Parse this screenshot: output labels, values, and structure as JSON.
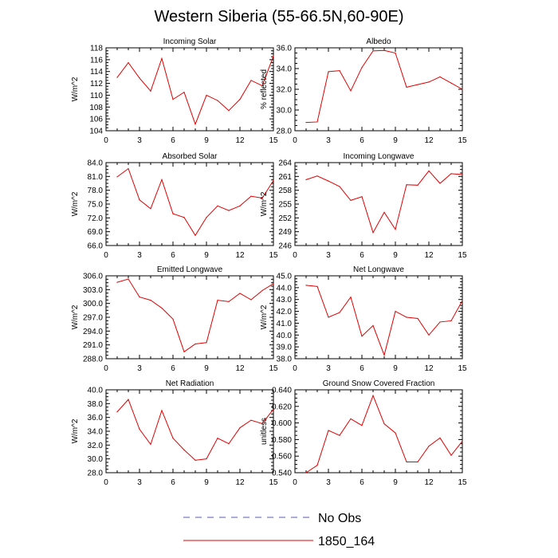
{
  "figure": {
    "title": "Western Siberia (55-66.5N,60-90E)"
  },
  "legend": [
    {
      "label": "No Obs",
      "color": "#5a5ab4",
      "dash": true
    },
    {
      "label": "1850_164",
      "color": "#e00000",
      "dash": false
    }
  ],
  "chart_data": [
    {
      "type": "line",
      "title": "Incoming Solar",
      "ylabel": "W/m^2",
      "xlim": [
        0,
        15
      ],
      "ylim": [
        104,
        118
      ],
      "xticks": [
        "0",
        "3",
        "6",
        "9",
        "12",
        "15"
      ],
      "yticks": [
        "104",
        "106",
        "108",
        "110",
        "112",
        "114",
        "116",
        "118"
      ],
      "series": [
        {
          "color": "#e00000",
          "x": [
            1,
            2,
            3,
            4,
            5,
            6,
            7,
            8,
            9,
            10,
            11,
            12,
            13,
            14,
            15
          ],
          "y": [
            113.0,
            115.5,
            112.9,
            110.7,
            116.2,
            109.3,
            110.5,
            105.1,
            110.0,
            109.1,
            107.4,
            109.3,
            112.5,
            111.6,
            116.6
          ]
        }
      ]
    },
    {
      "type": "line",
      "title": "Albedo",
      "ylabel": "% reflected",
      "xlim": [
        0,
        15
      ],
      "ylim": [
        28,
        36
      ],
      "xticks": [
        "0",
        "3",
        "6",
        "9",
        "12",
        "15"
      ],
      "yticks": [
        "28.0",
        "30.0",
        "32.0",
        "34.0",
        "36.0"
      ],
      "series": [
        {
          "color": "#e00000",
          "x": [
            1,
            2,
            3,
            4,
            5,
            6,
            7,
            8,
            9,
            10,
            11,
            12,
            13,
            14,
            15
          ],
          "y": [
            28.8,
            28.85,
            33.7,
            33.8,
            31.85,
            34.1,
            35.7,
            35.75,
            35.5,
            32.2,
            32.45,
            32.7,
            33.2,
            32.6,
            32.0
          ]
        }
      ]
    },
    {
      "type": "line",
      "title": "Absorbed Solar",
      "ylabel": "W/m^2",
      "xlim": [
        0,
        15
      ],
      "ylim": [
        66,
        84
      ],
      "xticks": [
        "0",
        "3",
        "6",
        "9",
        "12",
        "15"
      ],
      "yticks": [
        "66.0",
        "69.0",
        "72.0",
        "75.0",
        "78.0",
        "81.0",
        "84.0"
      ],
      "series": [
        {
          "color": "#e00000",
          "x": [
            1,
            2,
            3,
            4,
            5,
            6,
            7,
            8,
            9,
            10,
            11,
            12,
            13,
            14,
            15
          ],
          "y": [
            80.9,
            82.7,
            75.9,
            74.0,
            80.3,
            72.9,
            72.1,
            68.2,
            72.1,
            74.6,
            73.6,
            74.6,
            76.7,
            76.3,
            80.1
          ]
        }
      ]
    },
    {
      "type": "line",
      "title": "Incoming Longwave",
      "ylabel": "W/m^2",
      "xlim": [
        0,
        15
      ],
      "ylim": [
        246,
        264
      ],
      "xticks": [
        "0",
        "3",
        "6",
        "9",
        "12",
        "15"
      ],
      "yticks": [
        "246",
        "249",
        "252",
        "255",
        "258",
        "261",
        "264"
      ],
      "series": [
        {
          "color": "#e00000",
          "x": [
            1,
            2,
            3,
            4,
            5,
            6,
            7,
            8,
            9,
            10,
            11,
            12,
            13,
            14,
            15
          ],
          "y": [
            260.3,
            261.1,
            260.0,
            258.8,
            255.8,
            256.6,
            248.8,
            253.2,
            249.5,
            259.2,
            259.1,
            262.2,
            259.5,
            261.6,
            261.4
          ]
        }
      ]
    },
    {
      "type": "line",
      "title": "Emitted Longwave",
      "ylabel": "W/m^2",
      "xlim": [
        0,
        15
      ],
      "ylim": [
        288,
        306
      ],
      "xticks": [
        "0",
        "3",
        "6",
        "9",
        "12",
        "15"
      ],
      "yticks": [
        "288.0",
        "291.0",
        "294.0",
        "297.0",
        "300.0",
        "303.0",
        "306.0"
      ],
      "series": [
        {
          "color": "#e00000",
          "x": [
            1,
            2,
            3,
            4,
            5,
            6,
            7,
            8,
            9,
            10,
            11,
            12,
            13,
            14,
            15
          ],
          "y": [
            304.6,
            305.3,
            301.4,
            300.7,
            299.0,
            296.6,
            289.5,
            291.2,
            291.5,
            300.7,
            300.4,
            302.2,
            300.8,
            302.8,
            304.3
          ]
        }
      ]
    },
    {
      "type": "line",
      "title": "Net Longwave",
      "ylabel": "W/m^2",
      "xlim": [
        0,
        15
      ],
      "ylim": [
        38,
        45
      ],
      "xticks": [
        "0",
        "3",
        "6",
        "9",
        "12",
        "15"
      ],
      "yticks": [
        "38.0",
        "39.0",
        "40.0",
        "41.0",
        "42.0",
        "43.0",
        "44.0",
        "45.0"
      ],
      "series": [
        {
          "color": "#e00000",
          "x": [
            1,
            2,
            3,
            4,
            5,
            6,
            7,
            8,
            9,
            10,
            11,
            12,
            13,
            14,
            15
          ],
          "y": [
            44.2,
            44.1,
            41.5,
            41.9,
            43.2,
            39.9,
            40.8,
            38.3,
            42.0,
            41.5,
            41.4,
            40.0,
            41.1,
            41.2,
            42.9
          ]
        }
      ]
    },
    {
      "type": "line",
      "title": "Net Radiation",
      "ylabel": "W/m^2",
      "xlim": [
        0,
        15
      ],
      "ylim": [
        28,
        40
      ],
      "xticks": [
        "0",
        "3",
        "6",
        "9",
        "12",
        "15"
      ],
      "yticks": [
        "28.0",
        "30.0",
        "32.0",
        "34.0",
        "36.0",
        "38.0",
        "40.0"
      ],
      "series": [
        {
          "color": "#e00000",
          "x": [
            1,
            2,
            3,
            4,
            5,
            6,
            7,
            8,
            9,
            10,
            11,
            12,
            13,
            14,
            15
          ],
          "y": [
            36.8,
            38.6,
            34.3,
            32.1,
            37.0,
            33.0,
            31.3,
            29.8,
            30.0,
            33.0,
            32.2,
            34.5,
            35.6,
            35.1,
            37.2
          ]
        }
      ]
    },
    {
      "type": "line",
      "title": "Ground Snow Covered Fraction",
      "ylabel": "unitless",
      "xlim": [
        0,
        15
      ],
      "ylim": [
        0.54,
        0.64
      ],
      "xticks": [
        "0",
        "3",
        "6",
        "9",
        "12",
        "15"
      ],
      "yticks": [
        "0.540",
        "0.560",
        "0.580",
        "0.600",
        "0.620",
        "0.640"
      ],
      "series": [
        {
          "color": "#e00000",
          "x": [
            1,
            2,
            3,
            4,
            5,
            6,
            7,
            8,
            9,
            10,
            11,
            12,
            13,
            14,
            15
          ],
          "y": [
            0.54,
            0.549,
            0.591,
            0.585,
            0.605,
            0.597,
            0.633,
            0.599,
            0.588,
            0.553,
            0.553,
            0.572,
            0.582,
            0.561,
            0.578
          ]
        }
      ]
    }
  ]
}
